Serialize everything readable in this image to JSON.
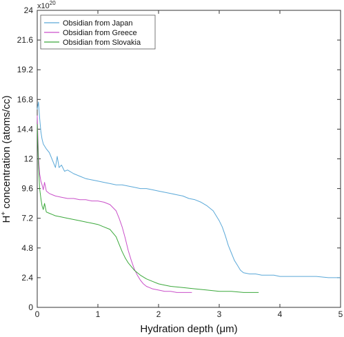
{
  "chart_data": {
    "type": "line",
    "xlabel": "Hydration depth (μm)",
    "ylabel_pre": "H",
    "ylabel_sup": "+",
    "ylabel_post": " concentration (atoms/cc)",
    "xlim": [
      0,
      5
    ],
    "ylim": [
      0,
      24
    ],
    "x_ticks": [
      0,
      1,
      2,
      3,
      4,
      5
    ],
    "x_tick_labels": [
      "0",
      "1",
      "2",
      "3",
      "4",
      "5"
    ],
    "y_ticks": [
      0,
      2.4,
      4.8,
      7.2,
      9.6,
      12,
      14.4,
      16.8,
      19.2,
      21.6,
      24
    ],
    "y_tick_labels": [
      "0",
      "2.4",
      "4.8",
      "7.2",
      "9.6",
      "12",
      "14.4",
      "16.8",
      "19.2",
      "21.6",
      "24"
    ],
    "y_multiplier_base": "x10",
    "y_multiplier_exp": "20",
    "grid": false,
    "legend_position": "top-left",
    "series": [
      {
        "name": "Obsidian from Japan",
        "color": "#5aa8d8",
        "points": [
          [
            0.0,
            16.0
          ],
          [
            0.02,
            16.6
          ],
          [
            0.04,
            15.3
          ],
          [
            0.06,
            14.2
          ],
          [
            0.08,
            13.6
          ],
          [
            0.1,
            13.2
          ],
          [
            0.15,
            12.8
          ],
          [
            0.2,
            12.5
          ],
          [
            0.25,
            11.9
          ],
          [
            0.3,
            11.3
          ],
          [
            0.33,
            12.2
          ],
          [
            0.36,
            11.3
          ],
          [
            0.4,
            11.5
          ],
          [
            0.45,
            11.0
          ],
          [
            0.5,
            11.1
          ],
          [
            0.6,
            10.8
          ],
          [
            0.7,
            10.6
          ],
          [
            0.8,
            10.4
          ],
          [
            0.9,
            10.3
          ],
          [
            1.0,
            10.2
          ],
          [
            1.1,
            10.1
          ],
          [
            1.2,
            10.0
          ],
          [
            1.3,
            9.9
          ],
          [
            1.4,
            9.9
          ],
          [
            1.5,
            9.8
          ],
          [
            1.6,
            9.7
          ],
          [
            1.7,
            9.6
          ],
          [
            1.8,
            9.6
          ],
          [
            1.9,
            9.5
          ],
          [
            2.0,
            9.4
          ],
          [
            2.1,
            9.3
          ],
          [
            2.2,
            9.2
          ],
          [
            2.3,
            9.1
          ],
          [
            2.4,
            9.0
          ],
          [
            2.5,
            8.8
          ],
          [
            2.6,
            8.7
          ],
          [
            2.7,
            8.5
          ],
          [
            2.8,
            8.2
          ],
          [
            2.9,
            7.8
          ],
          [
            3.0,
            7.0
          ],
          [
            3.05,
            6.5
          ],
          [
            3.1,
            5.8
          ],
          [
            3.15,
            5.0
          ],
          [
            3.2,
            4.4
          ],
          [
            3.25,
            3.8
          ],
          [
            3.3,
            3.4
          ],
          [
            3.35,
            3.0
          ],
          [
            3.4,
            2.8
          ],
          [
            3.5,
            2.7
          ],
          [
            3.6,
            2.7
          ],
          [
            3.7,
            2.6
          ],
          [
            3.8,
            2.6
          ],
          [
            3.9,
            2.6
          ],
          [
            4.0,
            2.5
          ],
          [
            4.2,
            2.5
          ],
          [
            4.4,
            2.5
          ],
          [
            4.6,
            2.5
          ],
          [
            4.8,
            2.4
          ],
          [
            5.0,
            2.4
          ]
        ]
      },
      {
        "name": "Obsidian from Greece",
        "color": "#c94fc9",
        "points": [
          [
            0.0,
            15.5
          ],
          [
            0.02,
            12.2
          ],
          [
            0.04,
            10.8
          ],
          [
            0.06,
            10.2
          ],
          [
            0.08,
            9.9
          ],
          [
            0.1,
            9.5
          ],
          [
            0.12,
            10.1
          ],
          [
            0.15,
            9.4
          ],
          [
            0.2,
            9.2
          ],
          [
            0.25,
            9.1
          ],
          [
            0.3,
            9.0
          ],
          [
            0.4,
            8.9
          ],
          [
            0.5,
            8.8
          ],
          [
            0.6,
            8.8
          ],
          [
            0.7,
            8.7
          ],
          [
            0.8,
            8.7
          ],
          [
            0.9,
            8.6
          ],
          [
            1.0,
            8.6
          ],
          [
            1.1,
            8.5
          ],
          [
            1.2,
            8.3
          ],
          [
            1.3,
            7.8
          ],
          [
            1.35,
            7.2
          ],
          [
            1.4,
            6.5
          ],
          [
            1.45,
            5.6
          ],
          [
            1.5,
            4.6
          ],
          [
            1.55,
            3.8
          ],
          [
            1.6,
            3.1
          ],
          [
            1.65,
            2.6
          ],
          [
            1.7,
            2.2
          ],
          [
            1.75,
            1.9
          ],
          [
            1.8,
            1.7
          ],
          [
            1.85,
            1.6
          ],
          [
            1.9,
            1.5
          ],
          [
            2.0,
            1.4
          ],
          [
            2.1,
            1.3
          ],
          [
            2.2,
            1.3
          ],
          [
            2.3,
            1.2
          ],
          [
            2.4,
            1.2
          ],
          [
            2.5,
            1.2
          ],
          [
            2.55,
            1.2
          ]
        ]
      },
      {
        "name": "Obsidian from Slovakia",
        "color": "#3aa83a",
        "points": [
          [
            0.0,
            14.8
          ],
          [
            0.02,
            11.5
          ],
          [
            0.04,
            9.6
          ],
          [
            0.06,
            8.8
          ],
          [
            0.08,
            8.2
          ],
          [
            0.1,
            7.9
          ],
          [
            0.12,
            8.4
          ],
          [
            0.15,
            7.7
          ],
          [
            0.2,
            7.6
          ],
          [
            0.25,
            7.5
          ],
          [
            0.3,
            7.4
          ],
          [
            0.4,
            7.3
          ],
          [
            0.5,
            7.2
          ],
          [
            0.6,
            7.1
          ],
          [
            0.7,
            7.0
          ],
          [
            0.8,
            6.9
          ],
          [
            0.9,
            6.8
          ],
          [
            1.0,
            6.7
          ],
          [
            1.1,
            6.5
          ],
          [
            1.2,
            6.3
          ],
          [
            1.3,
            5.7
          ],
          [
            1.35,
            5.1
          ],
          [
            1.4,
            4.5
          ],
          [
            1.45,
            4.0
          ],
          [
            1.5,
            3.6
          ],
          [
            1.55,
            3.3
          ],
          [
            1.6,
            3.0
          ],
          [
            1.7,
            2.6
          ],
          [
            1.8,
            2.3
          ],
          [
            1.9,
            2.1
          ],
          [
            2.0,
            1.9
          ],
          [
            2.1,
            1.8
          ],
          [
            2.2,
            1.7
          ],
          [
            2.4,
            1.6
          ],
          [
            2.6,
            1.5
          ],
          [
            2.8,
            1.4
          ],
          [
            3.0,
            1.3
          ],
          [
            3.2,
            1.3
          ],
          [
            3.4,
            1.2
          ],
          [
            3.6,
            1.2
          ],
          [
            3.65,
            1.2
          ]
        ]
      }
    ]
  }
}
